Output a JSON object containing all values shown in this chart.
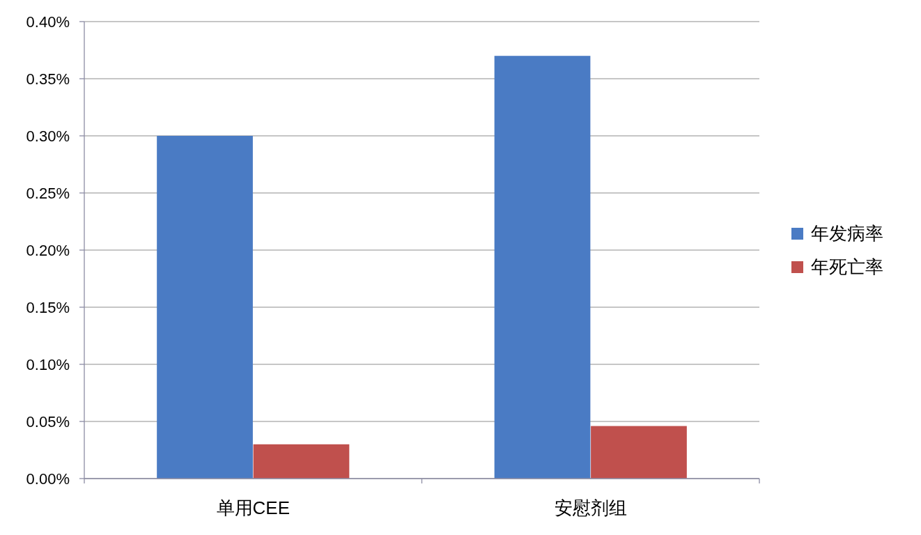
{
  "chart_data": {
    "type": "bar",
    "categories": [
      "单用CEE",
      "安慰剂组"
    ],
    "series": [
      {
        "name": "年发病率",
        "color": "#4a7bc4",
        "values": [
          0.3,
          0.37
        ]
      },
      {
        "name": "年死亡率",
        "color": "#c0504d",
        "values": [
          0.03,
          0.046
        ]
      }
    ],
    "ylim": [
      0,
      0.4
    ],
    "yticks": [
      {
        "value": 0,
        "label": "0.00%"
      },
      {
        "value": 0.05,
        "label": "0.05%"
      },
      {
        "value": 0.1,
        "label": "0.10%"
      },
      {
        "value": 0.15,
        "label": "0.15%"
      },
      {
        "value": 0.2,
        "label": "0.20%"
      },
      {
        "value": 0.25,
        "label": "0.25%"
      },
      {
        "value": 0.3,
        "label": "0.30%"
      },
      {
        "value": 0.35,
        "label": "0.35%"
      },
      {
        "value": 0.4,
        "label": "0.40%"
      }
    ],
    "grid": "y",
    "legend": "right"
  }
}
